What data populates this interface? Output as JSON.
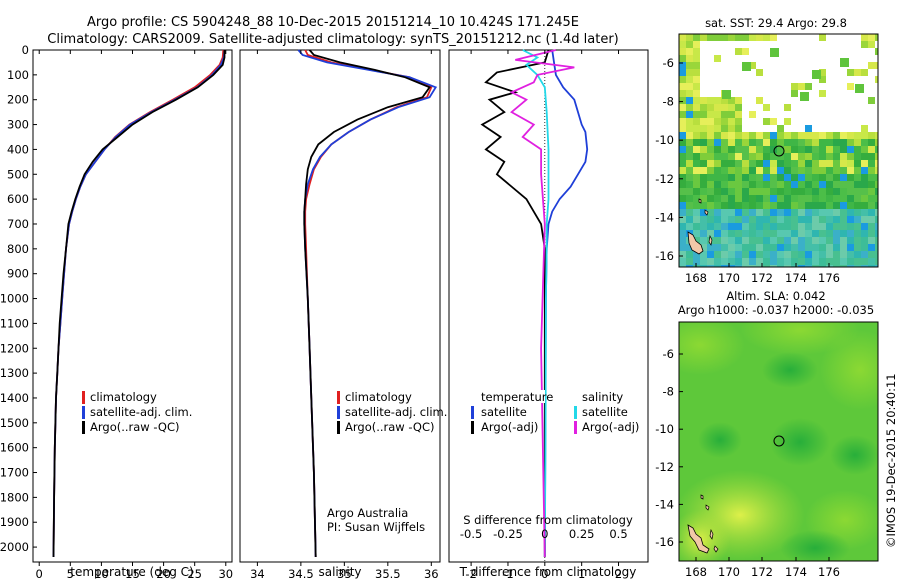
{
  "header": {
    "line1": "Argo profile: CS 5904248_88 10-Dec-2015 20151214_10 10.424S 171.245E",
    "line2": "Climatology: CARS2009. Satellite-adjusted climatology: synTS_20151212.nc (1.4d later)"
  },
  "colors": {
    "climatology": "#e02020",
    "satellite": "#1f3fd8",
    "argo": "#000000",
    "sal_sat": "#22d8e8",
    "sal_argo": "#e020e0"
  },
  "chart_data": [
    {
      "type": "line",
      "name": "temperature",
      "xlabel": "temperature (deg C)",
      "ylabel": "",
      "xlim": [
        -1,
        31
      ],
      "ylim": [
        2060,
        0
      ],
      "xticks": [
        0,
        5,
        10,
        15,
        20,
        25,
        30
      ],
      "yticks": [
        0,
        100,
        200,
        300,
        400,
        500,
        600,
        700,
        800,
        900,
        1000,
        1100,
        1200,
        1300,
        1400,
        1500,
        1600,
        1700,
        1800,
        1900,
        2000
      ],
      "legend": [
        "climatology",
        "satellite-adj. clim.",
        "Argo(..raw -QC)"
      ],
      "series": [
        {
          "name": "climatology",
          "color": "#e02020",
          "x": [
            29.6,
            29.5,
            29.0,
            27.5,
            25.0,
            21.5,
            17.8,
            14.5,
            12.2,
            10.5,
            9.0,
            7.5,
            6.6,
            5.9,
            5.3,
            4.8,
            4.3,
            4.0,
            3.7,
            3.4,
            3.1,
            2.9,
            2.7,
            2.6,
            2.5,
            2.4,
            2.3
          ],
          "y": [
            0,
            30,
            60,
            100,
            150,
            200,
            250,
            300,
            350,
            400,
            450,
            500,
            550,
            600,
            650,
            700,
            800,
            900,
            1000,
            1100,
            1200,
            1300,
            1400,
            1500,
            1600,
            1800,
            2040
          ]
        },
        {
          "name": "satellite-adj. clim.",
          "color": "#1f3fd8",
          "x": [
            29.8,
            29.7,
            29.2,
            27.8,
            25.4,
            21.8,
            18.0,
            14.6,
            12.3,
            10.5,
            9.0,
            7.5,
            6.6,
            5.9,
            5.3,
            4.8,
            4.3,
            4.0,
            3.7,
            3.4,
            3.1,
            2.9,
            2.7,
            2.6,
            2.5,
            2.4,
            2.3
          ],
          "y": [
            0,
            30,
            60,
            100,
            150,
            200,
            250,
            300,
            350,
            400,
            450,
            500,
            550,
            600,
            650,
            700,
            800,
            900,
            1000,
            1100,
            1200,
            1300,
            1400,
            1500,
            1600,
            1800,
            2040
          ]
        },
        {
          "name": "Argo(..raw -QC)",
          "color": "#000000",
          "x": [
            29.8,
            29.8,
            29.5,
            28.0,
            25.5,
            22.0,
            18.2,
            15.0,
            12.6,
            10.2,
            8.6,
            7.3,
            6.5,
            5.8,
            5.2,
            4.7,
            4.3,
            3.9,
            3.6,
            3.3,
            3.1,
            2.9,
            2.7,
            2.6,
            2.5,
            2.4,
            2.3
          ],
          "y": [
            0,
            30,
            60,
            100,
            150,
            200,
            250,
            300,
            350,
            400,
            450,
            500,
            550,
            600,
            650,
            700,
            800,
            900,
            1000,
            1100,
            1200,
            1300,
            1400,
            1500,
            1600,
            1800,
            2040
          ]
        }
      ]
    },
    {
      "type": "line",
      "name": "salinity",
      "xlabel": "salinity",
      "xlim": [
        33.8,
        36.1
      ],
      "ylim": [
        2060,
        0
      ],
      "xticks": [
        34,
        34.5,
        35,
        35.5,
        36
      ],
      "xtick_labels": [
        "34",
        "34.5",
        "35",
        "35.5",
        "36"
      ],
      "legend": [
        "climatology",
        "satellite-adj. clim.",
        "Argo(..raw -QC)"
      ],
      "annotation": [
        "Argo Australia",
        "PI: Susan Wijffels"
      ],
      "series": [
        {
          "name": "climatology",
          "color": "#e02020",
          "x": [
            34.55,
            34.58,
            34.85,
            35.3,
            35.75,
            36.0,
            35.95,
            35.6,
            35.3,
            35.05,
            34.85,
            34.73,
            34.65,
            34.6,
            34.56,
            34.55,
            34.55,
            34.56,
            34.58,
            34.6,
            34.62,
            34.65,
            34.67
          ],
          "y": [
            0,
            20,
            50,
            80,
            110,
            150,
            190,
            230,
            280,
            330,
            380,
            430,
            480,
            540,
            600,
            650,
            700,
            800,
            1000,
            1200,
            1400,
            1700,
            2040
          ]
        },
        {
          "name": "satellite-adj. clim.",
          "color": "#1f3fd8",
          "x": [
            34.47,
            34.52,
            34.8,
            35.28,
            35.75,
            36.05,
            35.98,
            35.62,
            35.3,
            35.05,
            34.85,
            34.72,
            34.64,
            34.58,
            34.55,
            34.54,
            34.54,
            34.55,
            34.58,
            34.6,
            34.62,
            34.65,
            34.67
          ],
          "y": [
            0,
            20,
            50,
            80,
            110,
            150,
            190,
            230,
            280,
            330,
            380,
            430,
            480,
            540,
            600,
            650,
            700,
            800,
            1000,
            1200,
            1400,
            1700,
            2040
          ]
        },
        {
          "name": "Argo(..raw -QC)",
          "color": "#000000",
          "x": [
            34.6,
            34.65,
            34.95,
            35.35,
            35.7,
            35.98,
            35.9,
            35.5,
            35.15,
            34.88,
            34.7,
            34.62,
            34.58,
            34.56,
            34.55,
            34.54,
            34.54,
            34.55,
            34.58,
            34.6,
            34.62,
            34.65,
            34.67
          ],
          "y": [
            0,
            20,
            50,
            80,
            110,
            150,
            190,
            230,
            280,
            330,
            380,
            430,
            480,
            540,
            600,
            650,
            700,
            800,
            1000,
            1200,
            1400,
            1700,
            2040
          ]
        }
      ]
    },
    {
      "type": "line",
      "name": "difference",
      "xlabel": "T difference from climatology",
      "xlabel_top": "S difference from climatology",
      "xlim": [
        -2.6,
        2.8
      ],
      "ylim": [
        2060,
        0
      ],
      "xticks": [
        -2,
        -1,
        0,
        1,
        2
      ],
      "stick_labels": [
        {
          "v": -2,
          "t": "-0.5"
        },
        {
          "v": -1,
          "t": "-0.25"
        },
        {
          "v": 0,
          "t": "0"
        },
        {
          "v": 1,
          "t": "0.25"
        },
        {
          "v": 2,
          "t": "0.5"
        }
      ],
      "legend_left_title": "temperature",
      "legend_right_title": "salinity",
      "legend": [
        "satellite",
        "Argo(-adj)",
        "satellite",
        "Argo(-adj)"
      ],
      "series": [
        {
          "name": "T satellite",
          "color": "#1f3fd8",
          "x": [
            0.2,
            0.25,
            0.3,
            0.5,
            0.8,
            0.9,
            1.0,
            1.1,
            1.15,
            1.1,
            0.9,
            0.7,
            0.4,
            0.2,
            0.1,
            0.05,
            0.03,
            0.02,
            0.01,
            0.0
          ],
          "y": [
            0,
            50,
            100,
            150,
            200,
            250,
            300,
            330,
            400,
            450,
            500,
            550,
            600,
            650,
            700,
            800,
            1000,
            1300,
            1700,
            2040
          ]
        },
        {
          "name": "T Argo(-adj)",
          "color": "#000000",
          "x": [
            0.1,
            0.0,
            -1.3,
            -1.6,
            -0.8,
            -1.5,
            -1.1,
            -1.7,
            -1.2,
            -1.6,
            -1.1,
            -1.3,
            -0.5,
            -0.1,
            0.0,
            0.0,
            0.0
          ],
          "y": [
            0,
            50,
            90,
            130,
            170,
            200,
            250,
            300,
            350,
            400,
            450,
            500,
            600,
            700,
            800,
            1200,
            2040
          ]
        },
        {
          "name": "S satellite",
          "color": "#22d8e8",
          "x": [
            -0.6,
            -0.2,
            -0.5,
            -0.2,
            0.0,
            0.05,
            0.1,
            0.1,
            0.1,
            0.05,
            0.05,
            0.03,
            0.02,
            0.0
          ],
          "y": [
            0,
            30,
            60,
            100,
            150,
            250,
            400,
            500,
            600,
            700,
            800,
            1000,
            1500,
            2040
          ]
        },
        {
          "name": "S Argo(-adj)",
          "color": "#e020e0",
          "x": [
            0.3,
            -0.8,
            0.8,
            -0.2,
            -0.3,
            -0.9,
            -0.5,
            -0.9,
            -0.3,
            -0.6,
            -0.1,
            -0.1,
            0.0,
            -0.1,
            0.0
          ],
          "y": [
            0,
            40,
            70,
            100,
            130,
            170,
            200,
            250,
            300,
            350,
            400,
            500,
            700,
            1200,
            2040
          ]
        }
      ]
    }
  ],
  "maps": {
    "sst": {
      "title": "sat. SST: 29.4 Argo: 29.8",
      "xticks": [
        "168",
        "170",
        "172",
        "174",
        "176"
      ],
      "yticks": [
        "-6",
        "-8",
        "-10",
        "-12",
        "-14",
        "-16"
      ]
    },
    "sla": {
      "title1": "Altim. SLA: 0.042",
      "title2": "Argo h1000: -0.037 h2000: -0.035",
      "xticks": [
        "168",
        "170",
        "172",
        "174",
        "176"
      ],
      "yticks": [
        "-6",
        "-8",
        "-10",
        "-12",
        "-14",
        "-16"
      ]
    },
    "float_position": {
      "lon": 171.245,
      "lat": -10.424
    }
  },
  "credit": "©IMOS 19-Dec-2015 20:40:11"
}
